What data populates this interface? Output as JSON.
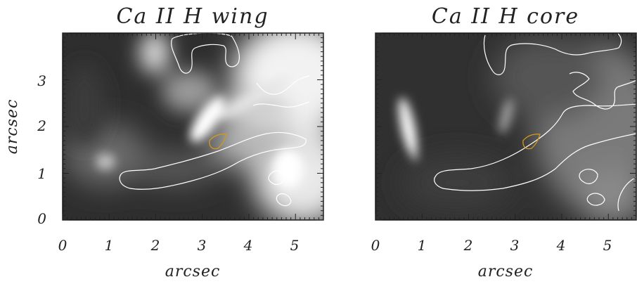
{
  "chart_data": [
    {
      "type": "heatmap",
      "title": "Ca II H wing",
      "xlabel": "arcsec",
      "ylabel": "arcsec",
      "xlim": [
        0,
        5.6
      ],
      "ylim": [
        0,
        4.0
      ],
      "xticks": [
        "0",
        "1",
        "2",
        "3",
        "4",
        "5"
      ],
      "yticks": [
        "0",
        "1",
        "2",
        "3"
      ],
      "colormap": "grayscale",
      "contour_colors": [
        "#ffffff",
        "#d49a1a"
      ]
    },
    {
      "type": "heatmap",
      "title": "Ca II H core",
      "xlabel": "arcsec",
      "ylabel": "",
      "xlim": [
        0,
        5.6
      ],
      "ylim": [
        0,
        4.0
      ],
      "xticks": [
        "0",
        "1",
        "2",
        "3",
        "4",
        "5"
      ],
      "yticks": [],
      "colormap": "grayscale",
      "contour_colors": [
        "#ffffff",
        "#d49a1a"
      ]
    }
  ]
}
